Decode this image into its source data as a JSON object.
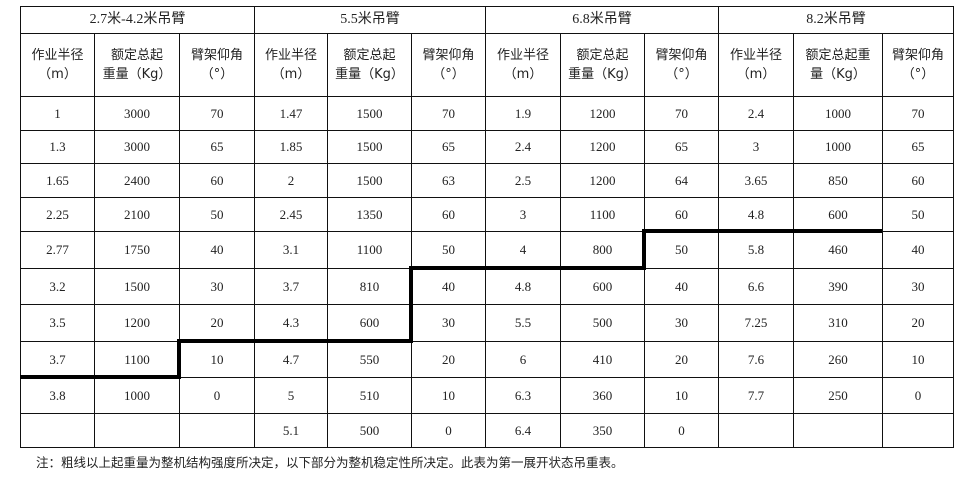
{
  "groups": [
    {
      "title": "2.7米-4.2米吊臂",
      "headers": [
        "作业半径（m）",
        "额定总起重量（Kg）",
        "臂架仰角（°）"
      ],
      "rows": [
        [
          "1",
          "3000",
          "70"
        ],
        [
          "1.3",
          "3000",
          "65"
        ],
        [
          "1.65",
          "2400",
          "60"
        ],
        [
          "2.25",
          "2100",
          "50"
        ],
        [
          "2.77",
          "1750",
          "40"
        ],
        [
          "3.2",
          "1500",
          "30"
        ],
        [
          "3.5",
          "1200",
          "20"
        ],
        [
          "3.7",
          "1100",
          "10"
        ],
        [
          "3.8",
          "1000",
          "0"
        ],
        [
          "",
          "",
          ""
        ]
      ]
    },
    {
      "title": "5.5米吊臂",
      "headers": [
        "作业半径（m）",
        "额定总起重量（Kg）",
        "臂架仰角（°）"
      ],
      "rows": [
        [
          "1.47",
          "1500",
          "70"
        ],
        [
          "1.85",
          "1500",
          "65"
        ],
        [
          "2",
          "1500",
          "63"
        ],
        [
          "2.45",
          "1350",
          "60"
        ],
        [
          "3.1",
          "1100",
          "50"
        ],
        [
          "3.7",
          "810",
          "40"
        ],
        [
          "4.3",
          "600",
          "30"
        ],
        [
          "4.7",
          "550",
          "20"
        ],
        [
          "5",
          "510",
          "10"
        ],
        [
          "5.1",
          "500",
          "0"
        ]
      ]
    },
    {
      "title": "6.8米吊臂",
      "headers": [
        "作业半径（m）",
        "额定总起重量（Kg）",
        "臂架仰角（°）"
      ],
      "rows": [
        [
          "1.9",
          "1200",
          "70"
        ],
        [
          "2.4",
          "1200",
          "65"
        ],
        [
          "2.5",
          "1200",
          "64"
        ],
        [
          "3",
          "1100",
          "60"
        ],
        [
          "4",
          "800",
          "50"
        ],
        [
          "4.8",
          "600",
          "40"
        ],
        [
          "5.5",
          "500",
          "30"
        ],
        [
          "6",
          "410",
          "20"
        ],
        [
          "6.3",
          "360",
          "10"
        ],
        [
          "6.4",
          "350",
          "0"
        ]
      ]
    },
    {
      "title": "8.2米吊臂",
      "headers": [
        "作业半径（m）",
        "额定总起重量（Kg）",
        "臂架仰角（°）"
      ],
      "rows": [
        [
          "2.4",
          "1000",
          "70"
        ],
        [
          "3",
          "1000",
          "65"
        ],
        [
          "3.65",
          "850",
          "60"
        ],
        [
          "4.8",
          "600",
          "50"
        ],
        [
          "5.8",
          "460",
          "40"
        ],
        [
          "6.6",
          "390",
          "30"
        ],
        [
          "7.25",
          "310",
          "20"
        ],
        [
          "7.6",
          "260",
          "10"
        ],
        [
          "7.7",
          "250",
          "0"
        ],
        [
          "",
          "",
          ""
        ]
      ]
    }
  ],
  "note": "注：粗线以上起重量为整机结构强度所决定，以下部分为整机稳定性所决定。此表为第一展开状态吊重表。"
}
